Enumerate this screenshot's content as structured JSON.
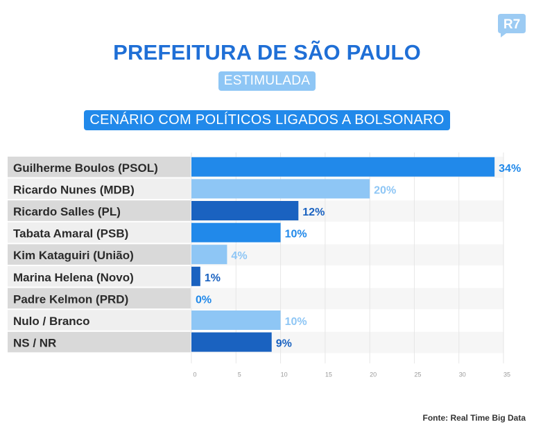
{
  "header": {
    "brand": "R7",
    "title": "PREFEITURA DE SÃO PAULO",
    "subtitle": "ESTIMULADA",
    "scenario": "CENÁRIO COM POLÍTICOS LIGADOS A BOLSONARO"
  },
  "source": "Fonte: Real Time Big Data",
  "colors": {
    "dark": "#1a62c0",
    "mid": "#2189ea",
    "light": "#8ec6f5"
  },
  "chart_data": {
    "type": "bar",
    "orientation": "horizontal",
    "categories": [
      "Guilherme Boulos (PSOL)",
      "Ricardo Nunes (MDB)",
      "Ricardo Salles (PL)",
      "Tabata Amaral (PSB)",
      "Kim Kataguiri (União)",
      "Marina Helena (Novo)",
      "Padre Kelmon (PRD)",
      "Nulo / Branco",
      "NS / NR"
    ],
    "values": [
      34,
      20,
      12,
      10,
      4,
      1,
      0,
      10,
      9
    ],
    "value_labels": [
      "34%",
      "20%",
      "12%",
      "10%",
      "4%",
      "1%",
      "0%",
      "10%",
      "9%"
    ],
    "bar_colors": [
      "mid",
      "light",
      "dark",
      "mid",
      "light",
      "dark",
      "mid",
      "light",
      "dark"
    ],
    "xlim": [
      0,
      35
    ],
    "xticks": [
      "0",
      "5",
      "10",
      "15",
      "20",
      "25",
      "30",
      "35"
    ],
    "grid": true,
    "legend": "none"
  }
}
